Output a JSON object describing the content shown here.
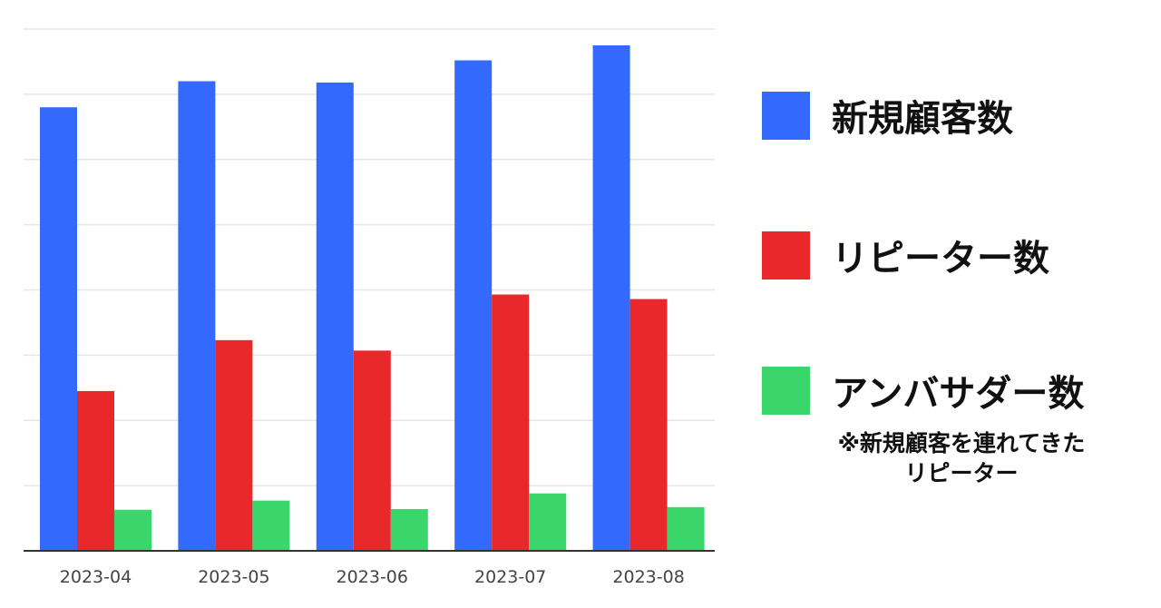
{
  "chart_data": {
    "type": "bar",
    "categories": [
      "2023-04",
      "2023-05",
      "2023-06",
      "2023-07",
      "2023-08"
    ],
    "series": [
      {
        "name": "新規顧客数",
        "color": "#3469fe",
        "values": [
          6.8,
          7.2,
          7.18,
          7.52,
          7.75
        ]
      },
      {
        "name": "リピーター数",
        "color": "#e8282b",
        "values": [
          2.45,
          3.23,
          3.07,
          3.93,
          3.86
        ]
      },
      {
        "name": "アンバサダー数",
        "color": "#3ad66b",
        "values": [
          0.63,
          0.77,
          0.64,
          0.88,
          0.67
        ]
      }
    ],
    "ylim": [
      0,
      8
    ],
    "grid": true,
    "legend_position": "right",
    "legend_note": {
      "line1": "※新規顧客を連れてきた",
      "line2": "リピーター"
    }
  }
}
